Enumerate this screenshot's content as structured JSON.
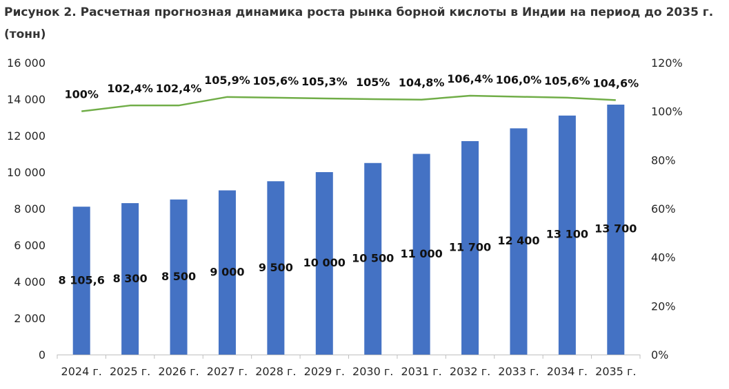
{
  "title": "Рисунок 2. Расчетная прогнозная динамика роста рынка борной кислоты в Индии на период до 2035 г. (тонн)",
  "colors": {
    "bar": "#4472C4",
    "line": "#70AD47"
  },
  "chart_data": {
    "type": "bar+line",
    "title": "Рисунок 2. Расчетная прогнозная динамика роста рынка борной кислоты в Индии на период до 2035 г. (тонн)",
    "categories": [
      "2024 г.",
      "2025 г.",
      "2026 г.",
      "2027 г.",
      "2028 г.",
      "2029 г.",
      "2030 г.",
      "2031 г.",
      "2032 г.",
      "2033 г.",
      "2034 г.",
      "2035 г."
    ],
    "series": [
      {
        "type": "bar",
        "axis": "left",
        "values": [
          8105.6,
          8300,
          8500,
          9000,
          9500,
          10000,
          10500,
          11000,
          11700,
          12400,
          13100,
          13700
        ],
        "labels": [
          "8 105,6",
          "8 300",
          "8 500",
          "9 000",
          "9 500",
          "10 000",
          "10 500",
          "11 000",
          "11 700",
          "12 400",
          "13 100",
          "13 700"
        ]
      },
      {
        "type": "line",
        "axis": "right",
        "values": [
          100,
          102.4,
          102.4,
          105.9,
          105.6,
          105.3,
          105,
          104.8,
          106.4,
          106.0,
          105.6,
          104.6
        ],
        "labels": [
          "100%",
          "102,4%",
          "102,4%",
          "105,9%",
          "105,6%",
          "105,3%",
          "105%",
          "104,8%",
          "106,4%",
          "106,0%",
          "105,6%",
          "104,6%"
        ]
      }
    ],
    "y_left": {
      "min": 0,
      "max": 16000,
      "ticks": [
        "0",
        "2 000",
        "4 000",
        "6 000",
        "8 000",
        "10 000",
        "12 000",
        "14 000",
        "16 000"
      ]
    },
    "y_right": {
      "min": 0,
      "max": 120,
      "ticks": [
        "0%",
        "20%",
        "40%",
        "60%",
        "80%",
        "100%",
        "120%"
      ]
    },
    "grid": false,
    "legend": "none"
  }
}
